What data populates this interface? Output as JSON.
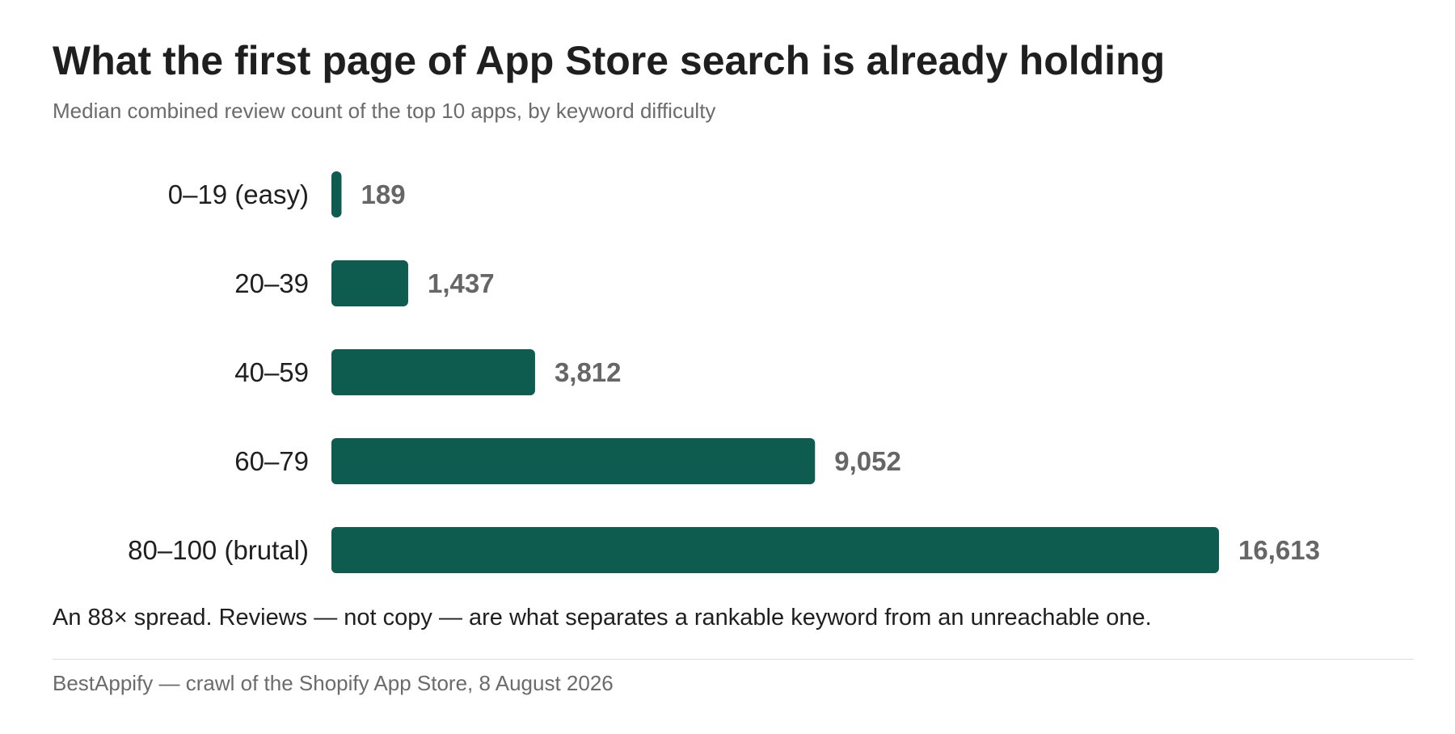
{
  "colors": {
    "bar": "#0d5c4f"
  },
  "chart_data": {
    "type": "bar",
    "orientation": "horizontal",
    "title": "What the first page of App Store search is already holding",
    "subtitle": "Median combined review count of the top 10 apps, by keyword difficulty",
    "categories": [
      "0–19 (easy)",
      "20–39",
      "40–59",
      "60–79",
      "80–100 (brutal)"
    ],
    "values": [
      189,
      1437,
      3812,
      9052,
      16613
    ],
    "value_labels": [
      "189",
      "1,437",
      "3,812",
      "9,052",
      "16,613"
    ],
    "xlim": [
      0,
      16613
    ],
    "grid": false,
    "legend": "none"
  },
  "footer": {
    "note": "An 88× spread. Reviews — not copy — are what separates a rankable keyword from an unreachable one.",
    "source": "BestAppify — crawl of the Shopify App Store, 8 August 2026"
  }
}
